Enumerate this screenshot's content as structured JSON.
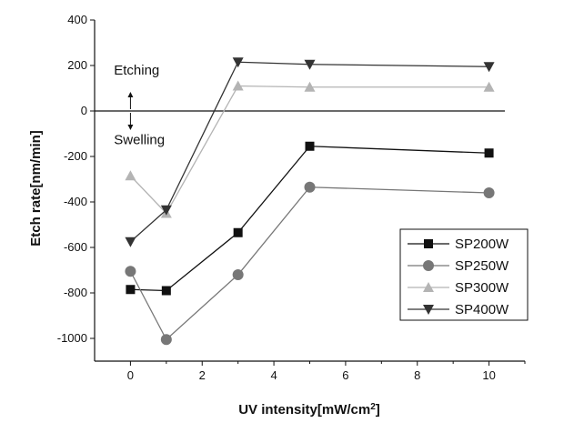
{
  "chart_data": {
    "type": "line",
    "title": "",
    "xlabel": "UV intensity[mW/cm",
    "xlabel_sup": "2",
    "xlabel_end": "]",
    "ylabel": "Etch rate[nm/min]",
    "xlim": [
      -1,
      11
    ],
    "ylim": [
      -1100,
      400
    ],
    "x_ticks": [
      0,
      2,
      4,
      6,
      8,
      10
    ],
    "y_ticks": [
      400,
      200,
      0,
      -200,
      -400,
      -600,
      -800,
      -1000
    ],
    "reference_line_y": 0,
    "annotations": [
      {
        "text": "Etching",
        "x": 0.3,
        "y": 180
      },
      {
        "text": "Swelling",
        "x": 0.3,
        "y": -125
      }
    ],
    "legend_position": "bottom-right",
    "series": [
      {
        "name": "SP200W",
        "marker": "square",
        "color": "#111111",
        "x": [
          0,
          1,
          3,
          5,
          10
        ],
        "y": [
          -785,
          -790,
          -535,
          -155,
          -185
        ]
      },
      {
        "name": "SP250W",
        "marker": "circle",
        "color": "#777777",
        "x": [
          0,
          1,
          3,
          5,
          10
        ],
        "y": [
          -705,
          -1005,
          -720,
          -335,
          -360
        ]
      },
      {
        "name": "SP300W",
        "marker": "triangle-up",
        "color": "#b4b4b4",
        "x": [
          0,
          1,
          3,
          5,
          10
        ],
        "y": [
          -285,
          -450,
          110,
          105,
          105
        ]
      },
      {
        "name": "SP400W",
        "marker": "triangle-down",
        "color": "#333333",
        "x": [
          0,
          1,
          3,
          5,
          10
        ],
        "y": [
          -575,
          -435,
          215,
          205,
          195
        ]
      }
    ]
  }
}
